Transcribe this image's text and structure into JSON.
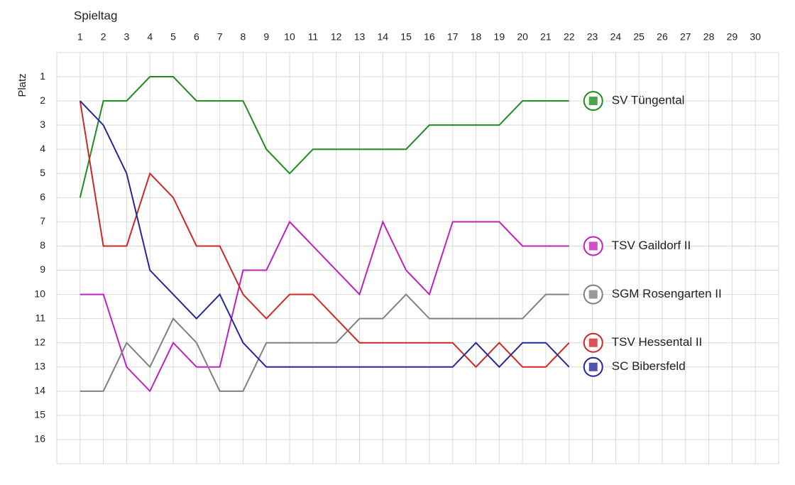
{
  "chart_data": {
    "type": "line",
    "x_label": "Spieltag",
    "y_label": "Platz",
    "x": [
      1,
      2,
      3,
      4,
      5,
      6,
      7,
      8,
      9,
      10,
      11,
      12,
      13,
      14,
      15,
      16,
      17,
      18,
      19,
      20,
      21,
      22
    ],
    "xlim": [
      0,
      31
    ],
    "xticks": [
      1,
      2,
      3,
      4,
      5,
      6,
      7,
      8,
      9,
      10,
      11,
      12,
      13,
      14,
      15,
      16,
      17,
      18,
      19,
      20,
      21,
      22,
      23,
      24,
      25,
      26,
      27,
      28,
      29,
      30
    ],
    "ylim": [
      17,
      0
    ],
    "yticks": [
      1,
      2,
      3,
      4,
      5,
      6,
      7,
      8,
      9,
      10,
      11,
      12,
      13,
      14,
      15,
      16
    ],
    "grid": true,
    "series": [
      {
        "name": "SV Tüngental",
        "color": "#1e8c1e",
        "values": [
          6,
          2,
          2,
          1,
          1,
          2,
          2,
          2,
          4,
          5,
          4,
          4,
          4,
          4,
          4,
          3,
          3,
          3,
          3,
          2,
          2,
          2
        ]
      },
      {
        "name": "TSV Gaildorf II",
        "color": "#c020c0",
        "values": [
          10,
          10,
          13,
          14,
          12,
          13,
          13,
          9,
          9,
          7,
          8,
          9,
          10,
          7,
          9,
          10,
          7,
          7,
          7,
          8,
          8,
          8
        ]
      },
      {
        "name": "SGM Rosengarten II",
        "color": "#808080",
        "values": [
          14,
          14,
          12,
          13,
          11,
          12,
          14,
          14,
          12,
          12,
          12,
          12,
          11,
          11,
          10,
          11,
          11,
          11,
          11,
          11,
          10,
          10
        ]
      },
      {
        "name": "TSV Hessental II",
        "color": "#d02626",
        "values": [
          2,
          8,
          8,
          5,
          6,
          8,
          8,
          10,
          11,
          10,
          10,
          11,
          12,
          12,
          12,
          12,
          12,
          13,
          12,
          13,
          13,
          12
        ]
      },
      {
        "name": "SC Bibersfeld",
        "color": "#26269c",
        "values": [
          2,
          3,
          5,
          9,
          10,
          11,
          10,
          12,
          13,
          13,
          13,
          13,
          13,
          13,
          13,
          13,
          13,
          12,
          13,
          12,
          12,
          13
        ]
      }
    ]
  }
}
